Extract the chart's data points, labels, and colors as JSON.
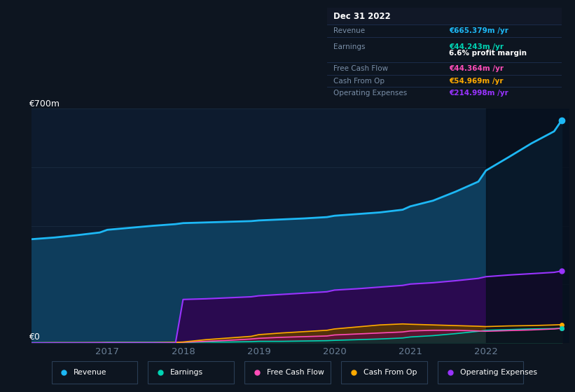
{
  "bg_color": "#0d1520",
  "plot_bg_color": "#0d1b2e",
  "years": [
    2016.0,
    2016.3,
    2016.6,
    2016.9,
    2017.0,
    2017.3,
    2017.6,
    2017.9,
    2018.0,
    2018.3,
    2018.6,
    2018.9,
    2019.0,
    2019.3,
    2019.6,
    2019.9,
    2020.0,
    2020.3,
    2020.6,
    2020.9,
    2021.0,
    2021.3,
    2021.6,
    2021.9,
    2022.0,
    2022.3,
    2022.6,
    2022.9,
    2023.0
  ],
  "revenue": [
    310,
    315,
    322,
    330,
    338,
    344,
    350,
    355,
    358,
    360,
    362,
    364,
    366,
    369,
    372,
    376,
    380,
    385,
    390,
    398,
    408,
    425,
    452,
    482,
    515,
    555,
    596,
    632,
    665
  ],
  "earnings": [
    1,
    1,
    1,
    1,
    2,
    2,
    2,
    2,
    2,
    3,
    3,
    4,
    5,
    5,
    6,
    7,
    8,
    10,
    12,
    15,
    18,
    22,
    28,
    35,
    38,
    40,
    42,
    43,
    44
  ],
  "free_cash_flow": [
    0.5,
    0.5,
    0.5,
    1,
    1,
    1,
    1,
    1,
    2,
    5,
    8,
    12,
    14,
    17,
    19,
    21,
    24,
    27,
    30,
    33,
    36,
    38,
    38,
    36,
    35,
    37,
    39,
    42,
    44
  ],
  "cash_from_op": [
    0.5,
    1,
    1,
    1,
    1,
    1,
    1,
    2,
    3,
    10,
    15,
    20,
    25,
    30,
    34,
    38,
    42,
    48,
    54,
    57,
    56,
    54,
    52,
    50,
    49,
    51,
    52,
    54,
    55
  ],
  "operating_expenses": [
    0,
    0,
    0,
    0,
    0,
    0,
    0,
    0,
    130,
    132,
    135,
    138,
    141,
    145,
    149,
    153,
    158,
    162,
    167,
    172,
    176,
    180,
    186,
    193,
    198,
    203,
    207,
    211,
    215
  ],
  "revenue_color": "#1db8f5",
  "revenue_fill": "#0e3d5c",
  "earnings_color": "#00d4b4",
  "earnings_fill": "#003830",
  "free_cash_flow_color": "#ff4db8",
  "free_cash_flow_fill": "#5c1038",
  "cash_from_op_color": "#ffaa00",
  "cash_from_op_fill": "#5c3800",
  "operating_expenses_color": "#9933ff",
  "operating_expenses_fill": "#2a0a50",
  "highlight_x_start": 2022.0,
  "highlight_x_end": 2023.2,
  "highlight_color": "#060e1a",
  "y_label_700": "€700m",
  "y_label_0": "€0",
  "x_ticks": [
    2017,
    2018,
    2019,
    2020,
    2021,
    2022
  ],
  "tooltip": {
    "title": "Dec 31 2022",
    "title_bg": "#111827",
    "bg": "#050c14",
    "revenue_label": "Revenue",
    "revenue_value": "€665.379m /yr",
    "revenue_color": "#1db8f5",
    "earnings_label": "Earnings",
    "earnings_value": "€44.243m /yr",
    "earnings_color": "#00d4b4",
    "margin_text": "6.6% profit margin",
    "fcf_label": "Free Cash Flow",
    "fcf_value": "€44.364m /yr",
    "fcf_color": "#ff4db8",
    "cashop_label": "Cash From Op",
    "cashop_value": "€54.969m /yr",
    "cashop_color": "#ffaa00",
    "opex_label": "Operating Expenses",
    "opex_value": "€214.998m /yr",
    "opex_color": "#9933ff"
  },
  "legend": [
    {
      "label": "Revenue",
      "color": "#1db8f5"
    },
    {
      "label": "Earnings",
      "color": "#00d4b4"
    },
    {
      "label": "Free Cash Flow",
      "color": "#ff4db8"
    },
    {
      "label": "Cash From Op",
      "color": "#ffaa00"
    },
    {
      "label": "Operating Expenses",
      "color": "#9933ff"
    }
  ],
  "xlim": [
    2016.0,
    2023.1
  ],
  "ylim": [
    0,
    700
  ],
  "grid_color": "#1a2d42",
  "tick_color": "#6a7f96",
  "label_color": "#6a7f96"
}
